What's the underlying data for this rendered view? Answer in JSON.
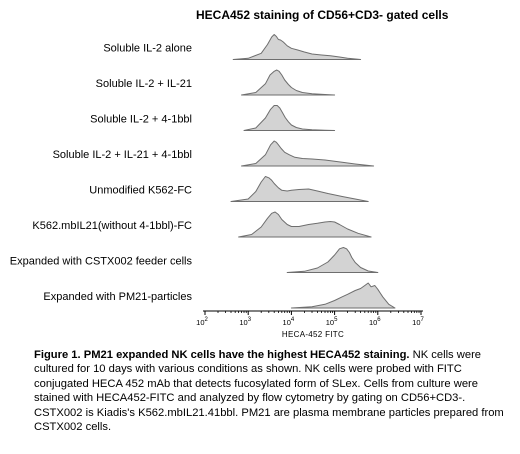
{
  "figure": {
    "caption_bold": "Figure 1. PM21 expanded NK cells have the highest HECA452 staining.",
    "caption_body": " NK cells were cultured for 10 days with various conditions as shown. NK cells were probed with FITC conjugated HECA 452 mAb that detects fucosylated form of SLex. Cells from culture were stained with HECA452-FITC and analyzed by flow cytometry by gating on CD56+CD3-. CSTX002 is Kiadis's K562.mbIL21.41bbl. PM21 are plasma membrane particles prepared from CSTX002 cells."
  },
  "chart_data": {
    "type": "area",
    "title": "HECA452 staining of CD56+CD3- gated cells",
    "xlabel": "HECA-452 FITC",
    "x_scale": "log",
    "xlim": [
      100,
      10000000
    ],
    "x_ticks": [
      {
        "value": 100,
        "base": "10",
        "exp": "2"
      },
      {
        "value": 1000,
        "base": "10",
        "exp": "3"
      },
      {
        "value": 10000,
        "base": "10",
        "exp": "4"
      },
      {
        "value": 100000,
        "base": "10",
        "exp": "5"
      },
      {
        "value": 1000000,
        "base": "10",
        "exp": "6"
      },
      {
        "value": 10000000,
        "base": "10",
        "exp": "7"
      }
    ],
    "fill_color": "#d3d3d3",
    "line_color": "#6e6e6e",
    "series": [
      {
        "name": "Soluble IL-2 alone",
        "x": [
          450,
          1000,
          2000,
          2800,
          3500,
          4000,
          4500,
          5000,
          5600,
          6500,
          8000,
          10000,
          14000,
          20000,
          30000,
          50000,
          80000,
          130000,
          200000,
          400000
        ],
        "y": [
          0,
          0.05,
          0.25,
          0.6,
          0.9,
          1.0,
          0.92,
          0.8,
          0.78,
          0.7,
          0.55,
          0.45,
          0.38,
          0.3,
          0.22,
          0.18,
          0.15,
          0.1,
          0.05,
          0
        ]
      },
      {
        "name": "Soluble IL-2 + IL-21",
        "x": [
          700,
          1500,
          2500,
          3200,
          4000,
          4600,
          5200,
          6000,
          7000,
          8500,
          10000,
          13000,
          18000,
          30000,
          60000,
          100000
        ],
        "y": [
          0,
          0.1,
          0.45,
          0.8,
          0.95,
          1.0,
          0.95,
          0.8,
          0.6,
          0.42,
          0.3,
          0.18,
          0.1,
          0.05,
          0.02,
          0
        ]
      },
      {
        "name": "Soluble IL-2 + 4-1bbl",
        "x": [
          800,
          1500,
          2500,
          3300,
          4000,
          4700,
          5400,
          6200,
          7200,
          8500,
          10000,
          13000,
          18000,
          30000,
          60000,
          100000
        ],
        "y": [
          0,
          0.1,
          0.5,
          0.85,
          1.0,
          1.0,
          0.9,
          0.72,
          0.52,
          0.35,
          0.22,
          0.12,
          0.06,
          0.03,
          0.01,
          0
        ]
      },
      {
        "name": "Soluble IL-2 + IL-21 + 4-1bbl",
        "x": [
          700,
          1500,
          2500,
          3300,
          4000,
          4500,
          5000,
          5800,
          7000,
          9000,
          12000,
          18000,
          30000,
          60000,
          150000,
          300000,
          800000
        ],
        "y": [
          0,
          0.1,
          0.45,
          0.85,
          1.0,
          0.95,
          0.85,
          0.7,
          0.55,
          0.45,
          0.35,
          0.3,
          0.28,
          0.24,
          0.15,
          0.08,
          0
        ]
      },
      {
        "name": "Unmodified K562-FC",
        "x": [
          400,
          1000,
          1500,
          2000,
          2500,
          3000,
          3500,
          4000,
          5000,
          6000,
          8000,
          10000,
          15000,
          25000,
          40000,
          70000,
          150000,
          300000,
          600000
        ],
        "y": [
          0,
          0.1,
          0.4,
          0.78,
          1.0,
          0.95,
          0.85,
          0.72,
          0.55,
          0.45,
          0.42,
          0.45,
          0.48,
          0.5,
          0.42,
          0.32,
          0.2,
          0.1,
          0
        ]
      },
      {
        "name": "K562.mbIL21(without 4-1bbl)-FC",
        "x": [
          600,
          1200,
          2000,
          2800,
          3500,
          4200,
          5000,
          6000,
          8000,
          10000,
          15000,
          25000,
          40000,
          60000,
          80000,
          100000,
          130000,
          200000,
          350000,
          700000
        ],
        "y": [
          0,
          0.1,
          0.4,
          0.75,
          0.95,
          1.0,
          0.9,
          0.7,
          0.5,
          0.42,
          0.42,
          0.5,
          0.55,
          0.6,
          0.62,
          0.6,
          0.5,
          0.32,
          0.15,
          0
        ]
      },
      {
        "name": "Expanded with CSTX002 feeder cells",
        "x": [
          8000,
          20000,
          40000,
          70000,
          100000,
          130000,
          160000,
          190000,
          220000,
          250000,
          300000,
          400000,
          600000,
          1000000
        ],
        "y": [
          0,
          0.05,
          0.18,
          0.42,
          0.7,
          0.95,
          1.0,
          0.95,
          0.8,
          0.6,
          0.4,
          0.2,
          0.06,
          0
        ]
      },
      {
        "name": "Expanded with PM21-particles",
        "x": [
          10000,
          30000,
          60000,
          100000,
          150000,
          200000,
          300000,
          400000,
          500000,
          600000,
          700000,
          850000,
          1000000,
          1300000,
          1800000,
          2500000
        ],
        "y": [
          0,
          0.05,
          0.15,
          0.3,
          0.45,
          0.55,
          0.7,
          0.78,
          0.9,
          1.0,
          0.85,
          0.9,
          0.75,
          0.45,
          0.15,
          0
        ]
      }
    ],
    "grid": false,
    "legend": "none"
  }
}
